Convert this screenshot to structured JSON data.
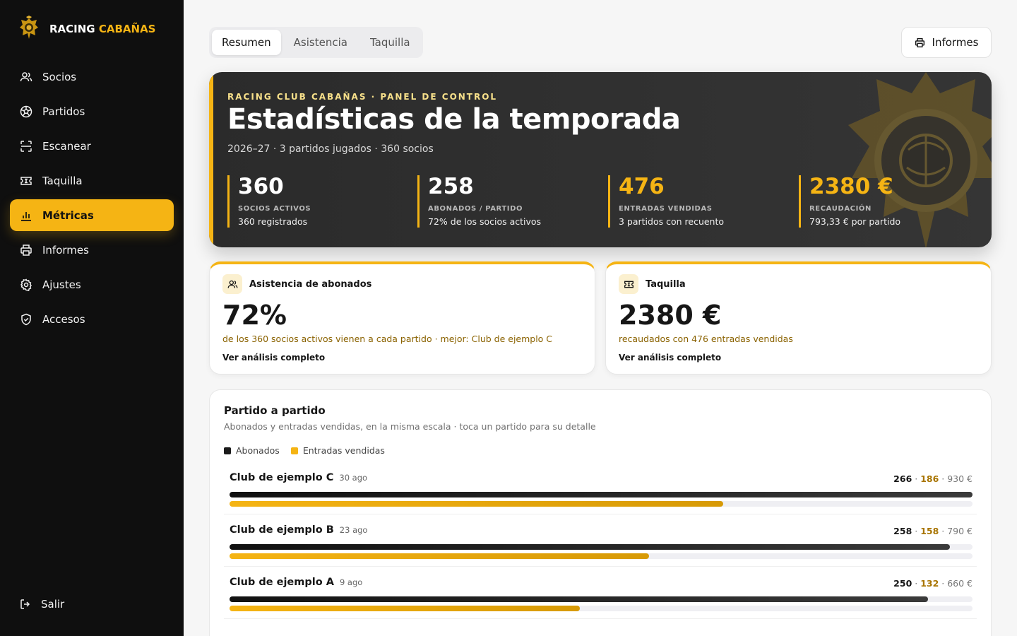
{
  "brand": {
    "name_part1": "RACING",
    "name_part2": "CABAÑAS"
  },
  "nav": {
    "items": [
      {
        "label": "Socios",
        "icon": "users-icon"
      },
      {
        "label": "Partidos",
        "icon": "soccer-ball-icon"
      },
      {
        "label": "Escanear",
        "icon": "scan-icon"
      },
      {
        "label": "Taquilla",
        "icon": "ticket-icon"
      },
      {
        "label": "Métricas",
        "icon": "bar-chart-icon",
        "active": true
      },
      {
        "label": "Informes",
        "icon": "printer-icon"
      },
      {
        "label": "Ajustes",
        "icon": "gear-icon"
      },
      {
        "label": "Accesos",
        "icon": "shield-icon"
      }
    ],
    "logout_label": "Salir"
  },
  "tabs": [
    {
      "label": "Resumen",
      "active": true
    },
    {
      "label": "Asistencia",
      "active": false
    },
    {
      "label": "Taquilla",
      "active": false
    }
  ],
  "reports_button": "Informes",
  "hero": {
    "kicker": "RACING CLUB CABAÑAS · PANEL DE CONTROL",
    "title": "Estadísticas de la temporada",
    "subtitle": "2026–27 · 3 partidos jugados · 360 socios",
    "kpis": [
      {
        "value": "360",
        "label": "SOCIOS ACTIVOS",
        "detail": "360 registrados",
        "gold": false
      },
      {
        "value": "258",
        "label": "ABONADOS / PARTIDO",
        "detail": "72% de los socios activos",
        "gold": false
      },
      {
        "value": "476",
        "label": "ENTRADAS VENDIDAS",
        "detail": "3 partidos con recuento",
        "gold": true
      },
      {
        "value": "2380 €",
        "label": "RECAUDACIÓN",
        "detail": "793,33 € por partido",
        "gold": true
      }
    ]
  },
  "cards": [
    {
      "title": "Asistencia de abonados",
      "icon": "users-icon",
      "value": "72%",
      "description": "de los 360 socios activos vienen a cada partido · mejor: Club de ejemplo C",
      "link": "Ver análisis completo"
    },
    {
      "title": "Taquilla",
      "icon": "ticket-icon",
      "value": "2380 €",
      "description": "recaudados con 476 entradas vendidas",
      "link": "Ver análisis completo"
    }
  ],
  "matches_panel": {
    "title": "Partido a partido",
    "subtitle": "Abonados y entradas vendidas, en la misma escala · toca un partido para su detalle",
    "legend": [
      "Abonados",
      "Entradas vendidas"
    ],
    "colors": {
      "abonados": "#1a1a1a",
      "entradas": "#f5b414"
    },
    "scale_max": 266,
    "matches": [
      {
        "name": "Club de ejemplo C",
        "date": "30 ago",
        "abonados": 266,
        "entradas": 186,
        "recaudacion": "930 €"
      },
      {
        "name": "Club de ejemplo B",
        "date": "23 ago",
        "abonados": 258,
        "entradas": 158,
        "recaudacion": "790 €"
      },
      {
        "name": "Club de ejemplo A",
        "date": "9 ago",
        "abonados": 250,
        "entradas": 132,
        "recaudacion": "660 €"
      }
    ]
  },
  "accent_color": "#f5b414"
}
